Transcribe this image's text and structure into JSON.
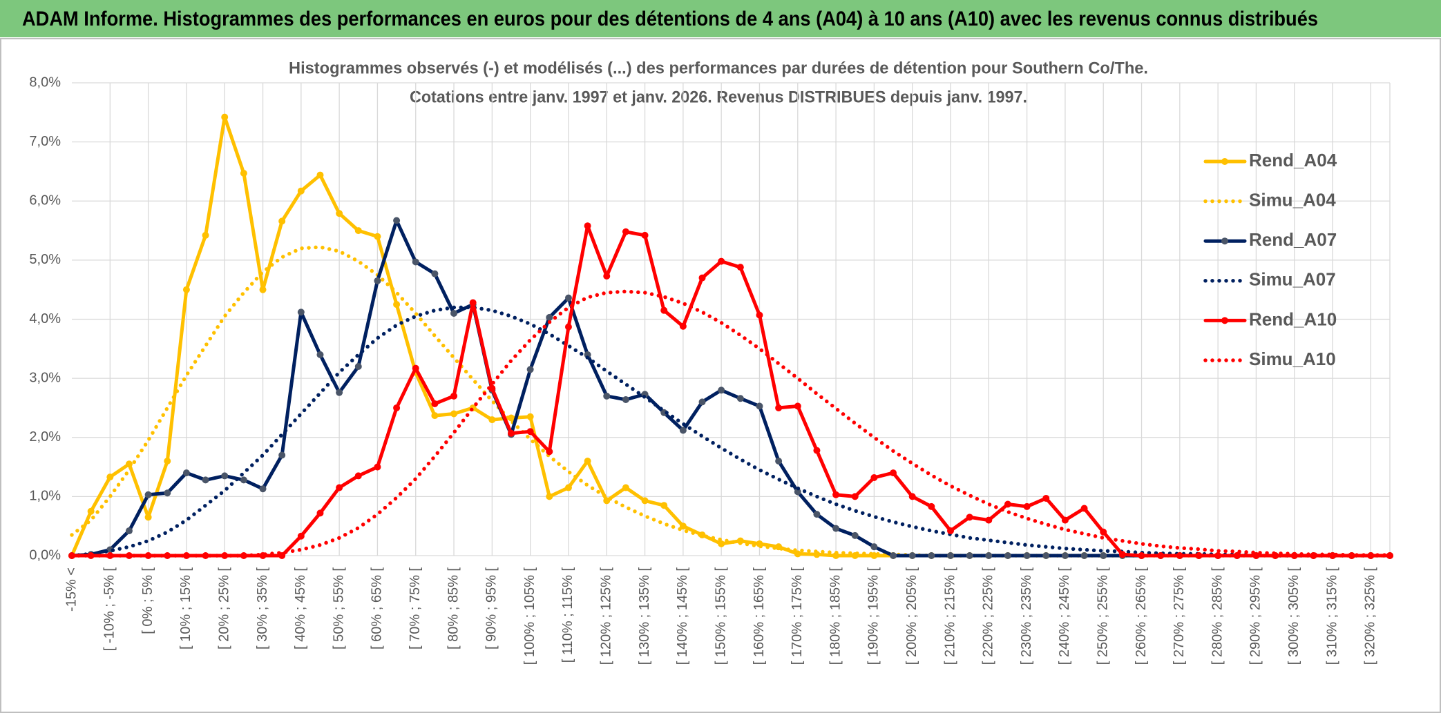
{
  "chart_data": {
    "type": "line",
    "header": "ADAM Informe. Histogrammes des performances en euros pour des détentions de 4 ans (A04) à 10 ans (A10) avec les revenus connus distribués",
    "title": [
      "Histogrammes observés (-) et modélisés (...) des performances par durées de détention pour Southern Co/The.",
      "Cotations entre janv. 1997 et janv. 2026. Revenus DISTRIBUES depuis janv. 1997."
    ],
    "categories": [
      "-15% <",
      null,
      "[ -10% ; -5% [",
      null,
      "[ 0% ; 5% [",
      null,
      "[ 10% ; 15% [",
      null,
      "[ 20% ; 25% [",
      null,
      "[ 30% ; 35% [",
      null,
      "[ 40% ; 45% [",
      null,
      "[ 50% ; 55% [",
      null,
      "[ 60% ; 65% [",
      null,
      "[ 70% ; 75% [",
      null,
      "[ 80% ; 85% [",
      null,
      "[ 90% ; 95% [",
      null,
      "[ 100% ; 105% [",
      null,
      "[ 110% ; 115% [",
      null,
      "[ 120% ; 125% [",
      null,
      "[ 130% ; 135% [",
      null,
      "[ 140% ; 145% [",
      null,
      "[ 150% ; 155% [",
      null,
      "[ 160% ; 165% [",
      null,
      "[ 170% ; 175% [",
      null,
      "[ 180% ; 185% [",
      null,
      "[ 190% ; 195% [",
      null,
      "[ 200% ; 205% [",
      null,
      "[ 210% ; 215% [",
      null,
      "[ 220% ; 225% [",
      null,
      "[ 230% ; 235% [",
      null,
      "[ 240% ; 245% [",
      null,
      "[ 250% ; 255% [",
      null,
      "[ 260% ; 265% [",
      null,
      "[ 270% ; 275% [",
      null,
      "[ 280% ; 285% [",
      null,
      "[ 290% ; 295% [",
      null,
      "[ 300% ; 305% [",
      null,
      "[ 310% ; 315% [",
      null,
      "[ 320% ; 325% [",
      null
    ],
    "series": [
      {
        "name": "Rend_A04",
        "color": "#ffc000",
        "style": "solid",
        "marker": true,
        "values": [
          0,
          0.75,
          1.33,
          1.55,
          0.65,
          1.6,
          4.5,
          5.42,
          7.42,
          6.47,
          4.5,
          5.66,
          6.17,
          6.44,
          5.79,
          5.5,
          5.4,
          4.25,
          3.1,
          2.37,
          2.4,
          2.5,
          2.3,
          2.33,
          2.35,
          1.0,
          1.15,
          1.6,
          0.93,
          1.15,
          0.93,
          0.85,
          0.5,
          0.35,
          0.2,
          0.25,
          0.2,
          0.15,
          0.03,
          0.02,
          0,
          0,
          0,
          0,
          0,
          0,
          0,
          0,
          0,
          0,
          0,
          0,
          0,
          0,
          0,
          0,
          0,
          0,
          0,
          0,
          0,
          0,
          0,
          0,
          0,
          0,
          0,
          0,
          0,
          0
        ]
      },
      {
        "name": "Simu_A04",
        "color": "#ffc000",
        "style": "dotted",
        "marker": false,
        "values": [
          0.35,
          0.6,
          1.0,
          1.45,
          1.95,
          2.5,
          3.05,
          3.55,
          4.05,
          4.45,
          4.8,
          5.05,
          5.2,
          5.22,
          5.15,
          4.98,
          4.75,
          4.45,
          4.1,
          3.72,
          3.35,
          2.98,
          2.62,
          2.28,
          1.97,
          1.68,
          1.42,
          1.19,
          0.99,
          0.82,
          0.67,
          0.54,
          0.43,
          0.34,
          0.27,
          0.21,
          0.16,
          0.12,
          0.09,
          0.07,
          0.05,
          0.04,
          0.03,
          0.02,
          0.01,
          0,
          0,
          0,
          0,
          0,
          0,
          0,
          0,
          0,
          0,
          0,
          0,
          0,
          0,
          0,
          0,
          0,
          0,
          0,
          0,
          0,
          0,
          0,
          0,
          0
        ]
      },
      {
        "name": "Rend_A07",
        "color": "#002060",
        "marker_color": "#4a5568",
        "style": "solid",
        "marker": true,
        "values": [
          0,
          0.02,
          0.1,
          0.42,
          1.03,
          1.06,
          1.4,
          1.28,
          1.35,
          1.28,
          1.13,
          1.7,
          4.12,
          3.4,
          2.76,
          3.2,
          4.65,
          5.67,
          4.97,
          4.77,
          4.1,
          4.25,
          2.8,
          2.05,
          3.15,
          4.03,
          4.36,
          3.4,
          2.7,
          2.64,
          2.73,
          2.42,
          2.12,
          2.6,
          2.8,
          2.66,
          2.53,
          1.6,
          1.08,
          0.7,
          0.46,
          0.34,
          0.15,
          0,
          0,
          0,
          0,
          0,
          0,
          0,
          0,
          0,
          0,
          0,
          0,
          0,
          0,
          0,
          0,
          0,
          0,
          0,
          0,
          0,
          0,
          0,
          0,
          0,
          0,
          0
        ]
      },
      {
        "name": "Simu_A07",
        "color": "#002060",
        "style": "dotted",
        "marker": false,
        "values": [
          0,
          0.03,
          0.08,
          0.15,
          0.25,
          0.4,
          0.6,
          0.85,
          1.1,
          1.4,
          1.7,
          2.05,
          2.4,
          2.75,
          3.1,
          3.4,
          3.68,
          3.9,
          4.05,
          4.15,
          4.2,
          4.2,
          4.15,
          4.05,
          3.92,
          3.75,
          3.55,
          3.35,
          3.12,
          2.9,
          2.68,
          2.45,
          2.23,
          2.02,
          1.82,
          1.63,
          1.45,
          1.29,
          1.14,
          1.0,
          0.87,
          0.76,
          0.66,
          0.57,
          0.49,
          0.42,
          0.36,
          0.3,
          0.26,
          0.22,
          0.18,
          0.15,
          0.12,
          0.1,
          0.08,
          0.07,
          0.05,
          0.04,
          0.03,
          0.03,
          0.02,
          0.02,
          0.01,
          0,
          0,
          0,
          0,
          0,
          0,
          0
        ]
      },
      {
        "name": "Rend_A10",
        "color": "#ff0000",
        "style": "solid",
        "marker": true,
        "values": [
          0,
          0,
          0,
          0,
          0,
          0,
          0,
          0,
          0,
          0,
          0,
          0,
          0.33,
          0.72,
          1.15,
          1.35,
          1.5,
          2.5,
          3.17,
          2.57,
          2.7,
          4.28,
          2.83,
          2.07,
          2.1,
          1.76,
          3.87,
          5.58,
          4.73,
          5.48,
          5.42,
          4.15,
          3.88,
          4.7,
          4.98,
          4.88,
          4.07,
          2.5,
          2.53,
          1.78,
          1.03,
          1.0,
          1.32,
          1.4,
          1.0,
          0.83,
          0.42,
          0.65,
          0.6,
          0.87,
          0.83,
          0.97,
          0.6,
          0.8,
          0.4,
          0.02,
          0,
          0,
          0,
          0,
          0,
          0,
          0,
          0,
          0,
          0,
          0,
          0,
          0,
          0
        ]
      },
      {
        "name": "Simu_A10",
        "color": "#ff0000",
        "style": "dotted",
        "marker": false,
        "values": [
          0,
          0,
          0,
          0,
          0,
          0,
          0,
          0,
          0,
          0,
          0.02,
          0.05,
          0.1,
          0.18,
          0.3,
          0.47,
          0.7,
          0.98,
          1.3,
          1.68,
          2.08,
          2.5,
          2.9,
          3.3,
          3.65,
          3.95,
          4.2,
          4.37,
          4.45,
          4.47,
          4.45,
          4.38,
          4.27,
          4.12,
          3.94,
          3.73,
          3.5,
          3.25,
          3.0,
          2.74,
          2.49,
          2.24,
          2.0,
          1.77,
          1.56,
          1.36,
          1.18,
          1.02,
          0.87,
          0.74,
          0.63,
          0.53,
          0.44,
          0.37,
          0.3,
          0.25,
          0.2,
          0.16,
          0.13,
          0.11,
          0.08,
          0.07,
          0.05,
          0.04,
          0.03,
          0.02,
          0.02,
          0.01,
          0.01,
          0.01
        ]
      }
    ],
    "ylim": [
      0,
      8
    ],
    "yticks": [
      {
        "value": 0,
        "label": "0,0%"
      },
      {
        "value": 1,
        "label": "1,0%"
      },
      {
        "value": 2,
        "label": "2,0%"
      },
      {
        "value": 3,
        "label": "3,0%"
      },
      {
        "value": 4,
        "label": "4,0%"
      },
      {
        "value": 5,
        "label": "5,0%"
      },
      {
        "value": 6,
        "label": "6,0%"
      },
      {
        "value": 7,
        "label": "7,0%"
      },
      {
        "value": 8,
        "label": "8,0%"
      }
    ],
    "grid": true,
    "legend": "right"
  }
}
